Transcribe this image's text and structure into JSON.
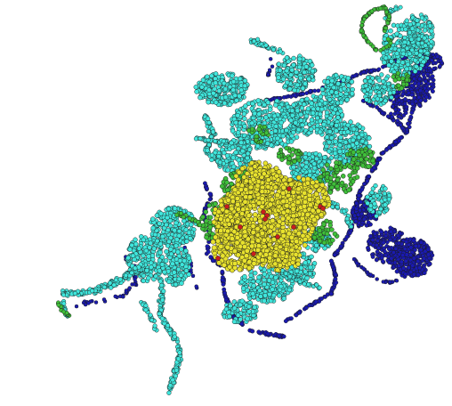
{
  "map": {
    "background": "#ffffff",
    "point_outline": "#1b1b1b",
    "categories": [
      {
        "key": "blue",
        "color": "#1a1ab0"
      },
      {
        "key": "cyan",
        "color": "#3fe6dc"
      },
      {
        "key": "green",
        "color": "#3fbf3a"
      },
      {
        "key": "yellow",
        "color": "#e8e22e"
      },
      {
        "key": "red",
        "color": "#c81e1e"
      }
    ]
  }
}
